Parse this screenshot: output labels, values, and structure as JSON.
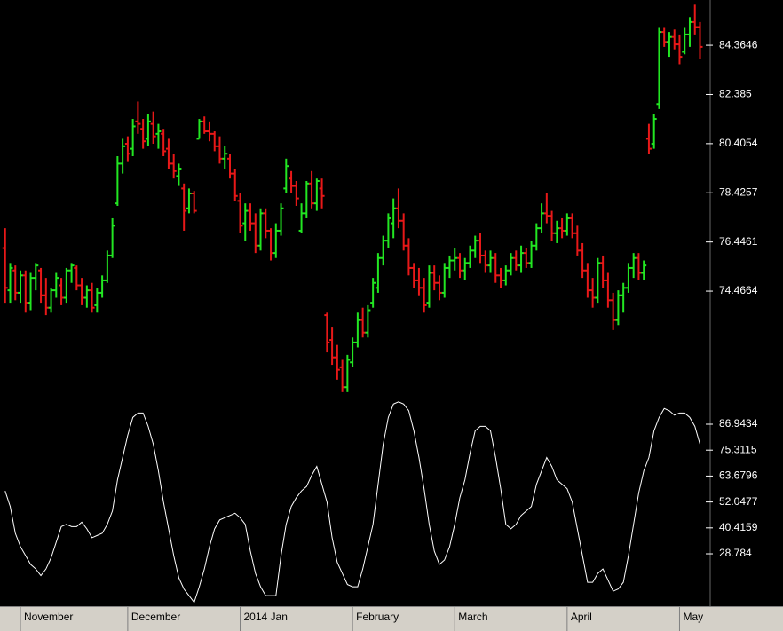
{
  "chart_data": [
    {
      "type": "ohlc",
      "up_color": "#22e622",
      "down_color": "#e81818",
      "xlim": [
        -1,
        138
      ],
      "ylim": [
        70.18,
        86.19
      ],
      "yticks": [
        74.4664,
        76.4461,
        78.4257,
        80.4054,
        82.385,
        84.3646
      ],
      "xticks": [
        {
          "value": 3,
          "label": "November"
        },
        {
          "value": 24,
          "label": "December"
        },
        {
          "value": 46,
          "label": "2014 Jan"
        },
        {
          "value": 68,
          "label": "February"
        },
        {
          "value": 88,
          "label": "March"
        },
        {
          "value": 110,
          "label": "April"
        },
        {
          "value": 132,
          "label": "May"
        }
      ],
      "ohlc": [
        [
          76.2,
          77.0,
          74.0,
          74.6
        ],
        [
          74.5,
          75.6,
          74.0,
          75.4
        ],
        [
          75.3,
          75.5,
          74.1,
          74.4
        ],
        [
          74.4,
          75.3,
          74.0,
          75.1
        ],
        [
          75.1,
          75.3,
          73.6,
          74.0
        ],
        [
          74.0,
          75.2,
          73.7,
          75.0
        ],
        [
          75.0,
          75.6,
          74.5,
          75.5
        ],
        [
          75.3,
          75.4,
          74.0,
          74.3
        ],
        [
          74.3,
          75.0,
          73.5,
          73.8
        ],
        [
          73.8,
          74.6,
          73.6,
          74.5
        ],
        [
          74.5,
          75.2,
          74.2,
          75.0
        ],
        [
          74.7,
          75.0,
          73.9,
          74.2
        ],
        [
          74.2,
          75.4,
          74.0,
          75.3
        ],
        [
          75.3,
          75.6,
          74.8,
          75.5
        ],
        [
          75.4,
          75.5,
          74.5,
          74.7
        ],
        [
          74.7,
          75.0,
          73.9,
          74.2
        ],
        [
          74.2,
          74.7,
          73.8,
          74.5
        ],
        [
          74.5,
          74.8,
          73.6,
          73.8
        ],
        [
          73.9,
          74.6,
          73.6,
          74.4
        ],
        [
          74.4,
          75.1,
          74.2,
          74.9
        ],
        [
          74.9,
          76.1,
          74.8,
          75.9
        ],
        [
          75.9,
          77.4,
          75.8,
          77.1
        ],
        [
          78.0,
          79.9,
          77.9,
          79.6
        ],
        [
          79.6,
          80.6,
          79.2,
          80.3
        ],
        [
          80.4,
          80.7,
          79.7,
          80.0
        ],
        [
          80.2,
          81.4,
          79.9,
          81.1
        ],
        [
          81.3,
          82.1,
          80.8,
          81.2
        ],
        [
          81.0,
          81.4,
          80.2,
          80.5
        ],
        [
          80.6,
          81.6,
          80.3,
          81.3
        ],
        [
          81.2,
          81.7,
          80.4,
          80.7
        ],
        [
          80.8,
          81.2,
          80.2,
          80.9
        ],
        [
          80.8,
          81.0,
          79.9,
          80.1
        ],
        [
          80.2,
          80.6,
          79.4,
          79.6
        ],
        [
          79.6,
          80.0,
          79.0,
          79.3
        ],
        [
          79.1,
          79.6,
          78.7,
          79.4
        ],
        [
          78.6,
          78.8,
          76.9,
          77.7
        ],
        [
          77.8,
          78.6,
          77.6,
          78.4
        ],
        [
          78.4,
          78.5,
          77.6,
          77.7
        ],
        [
          80.6,
          81.4,
          80.6,
          81.3
        ],
        [
          81.3,
          81.5,
          80.8,
          80.9
        ],
        [
          80.9,
          81.3,
          80.5,
          80.8
        ],
        [
          80.8,
          80.9,
          80.1,
          80.3
        ],
        [
          80.3,
          80.7,
          79.6,
          79.8
        ],
        [
          79.8,
          80.3,
          79.4,
          80.0
        ],
        [
          79.8,
          80.0,
          79.0,
          79.2
        ],
        [
          79.2,
          79.4,
          78.1,
          78.3
        ],
        [
          78.1,
          78.4,
          76.8,
          77.1
        ],
        [
          77.2,
          78.0,
          76.5,
          77.7
        ],
        [
          77.7,
          78.0,
          76.9,
          77.2
        ],
        [
          77.2,
          77.6,
          76.0,
          76.3
        ],
        [
          76.3,
          77.8,
          76.1,
          77.6
        ],
        [
          77.6,
          77.8,
          76.6,
          76.9
        ],
        [
          76.9,
          77.0,
          75.7,
          76.0
        ],
        [
          76.0,
          77.2,
          75.8,
          76.9
        ],
        [
          76.9,
          78.0,
          76.7,
          77.8
        ],
        [
          78.6,
          79.8,
          78.4,
          79.5
        ],
        [
          79.0,
          79.3,
          78.4,
          78.7
        ],
        [
          78.7,
          78.9,
          77.9,
          78.2
        ],
        [
          76.9,
          78.0,
          76.8,
          77.6
        ],
        [
          77.6,
          78.9,
          77.4,
          78.8
        ],
        [
          78.8,
          79.3,
          77.8,
          78.0
        ],
        [
          78.0,
          79.0,
          77.7,
          78.9
        ],
        [
          78.6,
          79.0,
          77.8,
          78.3
        ],
        [
          73.5,
          73.6,
          72.0,
          72.4
        ],
        [
          72.5,
          73.0,
          71.5,
          71.8
        ],
        [
          71.8,
          72.3,
          70.9,
          71.3
        ],
        [
          71.4,
          71.7,
          70.4,
          70.6
        ],
        [
          70.6,
          71.9,
          70.4,
          71.7
        ],
        [
          71.6,
          72.6,
          71.4,
          72.4
        ],
        [
          72.4,
          73.6,
          72.2,
          73.3
        ],
        [
          73.3,
          73.8,
          72.6,
          72.8
        ],
        [
          72.8,
          73.9,
          72.6,
          73.7
        ],
        [
          74.0,
          75.0,
          73.8,
          74.8
        ],
        [
          74.6,
          76.0,
          74.4,
          75.8
        ],
        [
          75.8,
          76.7,
          75.5,
          76.5
        ],
        [
          76.5,
          77.6,
          76.2,
          77.4
        ],
        [
          77.2,
          78.2,
          76.6,
          77.8
        ],
        [
          77.8,
          78.6,
          77.0,
          77.3
        ],
        [
          77.3,
          77.6,
          76.1,
          76.3
        ],
        [
          76.3,
          76.6,
          75.1,
          75.4
        ],
        [
          75.4,
          75.6,
          74.6,
          74.9
        ],
        [
          74.9,
          75.4,
          74.3,
          74.6
        ],
        [
          74.6,
          75.0,
          73.6,
          73.9
        ],
        [
          74.0,
          75.5,
          73.8,
          75.2
        ],
        [
          75.2,
          75.5,
          74.5,
          74.8
        ],
        [
          74.8,
          75.1,
          74.1,
          74.4
        ],
        [
          74.4,
          75.6,
          74.2,
          75.4
        ],
        [
          75.4,
          75.9,
          75.0,
          75.7
        ],
        [
          75.7,
          76.2,
          75.3,
          75.8
        ],
        [
          75.8,
          76.0,
          75.0,
          75.3
        ],
        [
          75.3,
          75.8,
          74.9,
          75.6
        ],
        [
          75.6,
          76.3,
          75.4,
          76.1
        ],
        [
          76.1,
          76.7,
          75.8,
          76.5
        ],
        [
          76.5,
          76.8,
          75.6,
          75.9
        ],
        [
          75.9,
          76.1,
          75.2,
          75.5
        ],
        [
          75.5,
          76.1,
          75.2,
          75.8
        ],
        [
          75.8,
          76.0,
          74.8,
          75.1
        ],
        [
          75.1,
          75.4,
          74.6,
          74.9
        ],
        [
          74.9,
          75.5,
          74.7,
          75.3
        ],
        [
          75.3,
          76.0,
          75.1,
          75.8
        ],
        [
          75.8,
          76.1,
          75.3,
          75.5
        ],
        [
          75.5,
          76.3,
          75.2,
          76.0
        ],
        [
          76.0,
          76.2,
          75.4,
          75.6
        ],
        [
          75.6,
          76.5,
          75.4,
          76.3
        ],
        [
          76.3,
          77.2,
          76.1,
          77.0
        ],
        [
          77.0,
          78.0,
          76.8,
          77.6
        ],
        [
          77.6,
          78.4,
          77.2,
          77.5
        ],
        [
          77.5,
          77.7,
          76.5,
          76.8
        ],
        [
          76.8,
          77.3,
          76.4,
          77.0
        ],
        [
          77.0,
          77.4,
          76.6,
          76.9
        ],
        [
          76.9,
          77.6,
          76.7,
          77.4
        ],
        [
          77.4,
          77.6,
          76.6,
          76.8
        ],
        [
          76.8,
          77.1,
          75.9,
          76.1
        ],
        [
          76.1,
          76.4,
          75.0,
          75.3
        ],
        [
          75.3,
          75.6,
          74.2,
          74.5
        ],
        [
          74.5,
          75.0,
          73.8,
          74.2
        ],
        [
          74.2,
          75.8,
          74.0,
          75.6
        ],
        [
          75.6,
          75.9,
          74.6,
          74.9
        ],
        [
          74.9,
          75.2,
          73.8,
          74.1
        ],
        [
          74.1,
          74.4,
          72.9,
          73.3
        ],
        [
          73.3,
          74.5,
          73.1,
          74.3
        ],
        [
          74.3,
          74.8,
          73.6,
          74.6
        ],
        [
          74.6,
          75.6,
          74.4,
          75.4
        ],
        [
          75.4,
          76.0,
          75.0,
          75.8
        ],
        [
          75.8,
          76.0,
          74.9,
          75.2
        ],
        [
          75.2,
          75.7,
          74.9,
          75.5
        ],
        [
          80.6,
          81.2,
          80.0,
          80.2
        ],
        [
          80.4,
          81.6,
          80.2,
          81.4
        ],
        [
          82.0,
          85.1,
          81.8,
          84.9
        ],
        [
          84.9,
          85.1,
          84.3,
          84.5
        ],
        [
          84.5,
          84.9,
          83.9,
          84.7
        ],
        [
          84.7,
          85.0,
          84.2,
          84.4
        ],
        [
          84.4,
          84.8,
          83.6,
          83.9
        ],
        [
          84.1,
          85.1,
          84.0,
          84.8
        ],
        [
          84.8,
          85.5,
          84.3,
          85.3
        ],
        [
          85.3,
          86.0,
          84.8,
          85.1
        ],
        [
          85.1,
          85.3,
          83.8,
          84.3
        ]
      ]
    },
    {
      "type": "line",
      "color": "#ffffff",
      "xlim": [
        -1,
        138
      ],
      "ylim": [
        5.29,
        98.1
      ],
      "yticks": [
        28.784,
        40.4159,
        52.0477,
        63.6796,
        75.3115,
        86.9434
      ],
      "values": [
        57,
        50,
        38,
        32,
        28,
        24,
        22,
        19,
        22,
        27,
        34,
        41,
        42,
        41,
        41,
        43,
        40,
        36,
        37,
        38,
        42,
        48,
        62,
        72,
        82,
        90,
        92,
        92,
        86,
        78,
        66,
        52,
        40,
        28,
        18,
        13,
        10,
        7,
        14,
        22,
        32,
        40,
        44,
        45,
        46,
        47,
        45,
        42,
        30,
        20,
        14,
        10,
        10,
        10,
        28,
        42,
        50,
        54,
        57,
        59,
        64,
        68,
        60,
        52,
        36,
        25,
        20,
        15,
        14,
        14,
        22,
        32,
        42,
        60,
        78,
        90,
        96,
        97,
        96,
        93,
        84,
        72,
        58,
        42,
        30,
        24,
        26,
        32,
        42,
        54,
        62,
        74,
        84,
        86,
        86,
        84,
        72,
        58,
        42,
        40,
        42,
        46,
        48,
        50,
        60,
        66,
        72,
        68,
        62,
        60,
        58,
        52,
        40,
        28,
        16,
        16,
        20,
        22,
        17,
        12,
        13,
        16,
        28,
        42,
        56,
        66,
        72,
        84,
        90,
        94,
        93,
        91,
        92,
        92,
        90,
        86,
        78
      ]
    }
  ]
}
